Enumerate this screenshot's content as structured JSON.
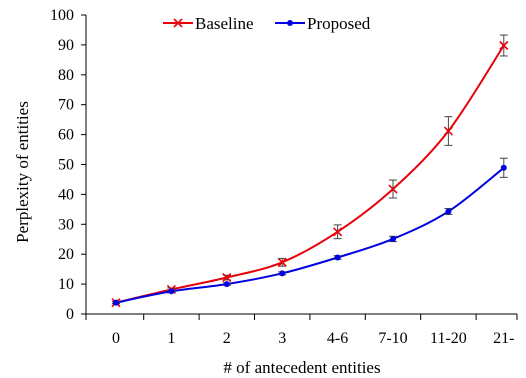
{
  "chart_data": {
    "type": "line",
    "title": "",
    "xlabel": "# of antecedent entities",
    "ylabel": "Perplexity of entities",
    "categories": [
      "0",
      "1",
      "2",
      "3",
      "4-6",
      "7-10",
      "11-20",
      "21-"
    ],
    "ylim": [
      0,
      100
    ],
    "yticks": [
      0,
      10,
      20,
      30,
      40,
      50,
      60,
      70,
      80,
      90,
      100
    ],
    "grid": false,
    "legend": "top-center",
    "series": [
      {
        "name": "Baseline",
        "color": "#e8000b",
        "marker": "x",
        "values": [
          3.8,
          8.2,
          12.2,
          17.3,
          27.5,
          41.8,
          61.2,
          89.8
        ],
        "error": [
          0.4,
          0.5,
          0.8,
          1.3,
          2.3,
          3.0,
          4.8,
          3.5
        ]
      },
      {
        "name": "Proposed",
        "color": "#0000e0",
        "marker": "dot",
        "values": [
          3.8,
          7.6,
          10.0,
          13.6,
          18.9,
          25.1,
          34.3,
          48.9
        ],
        "error": [
          0.3,
          0.3,
          0.4,
          0.5,
          0.6,
          0.9,
          1.0,
          3.2
        ]
      }
    ]
  }
}
